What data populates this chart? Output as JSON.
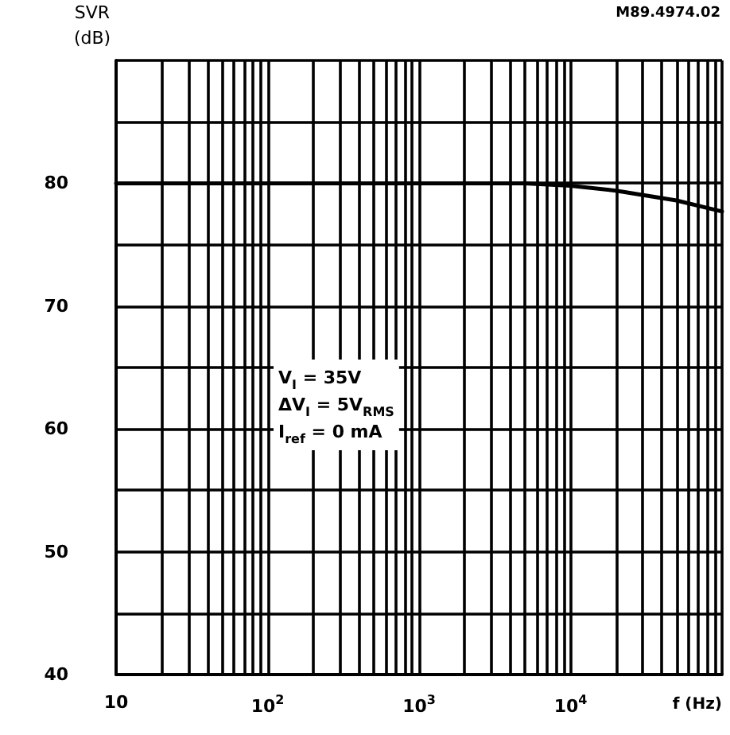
{
  "chart_data": {
    "type": "line",
    "ylabel": "SVR (dB)",
    "xlabel": "f (Hz)",
    "annotations": [
      "V$_{I}$ = 35V",
      "ΔV$_{I}$ = 5V$_{RMS}$",
      "I$_{ref}$ = 0 mA",
      "M89.4974.02"
    ],
    "x": [
      10,
      100,
      1000,
      3000,
      5000,
      10000,
      20000,
      50000,
      100000
    ],
    "series": [
      {
        "color": "#000000",
        "values": [
          80,
          80,
          80,
          80,
          80,
          79.8,
          79.4,
          78.6,
          77.7
        ]
      }
    ],
    "log": "x",
    "xlim": [
      10,
      100000
    ],
    "ylim": [
      40,
      90
    ],
    "xticks": [
      {
        "value": 10,
        "label": "10"
      },
      {
        "value": 20,
        "label": null
      },
      {
        "value": 30,
        "label": null
      },
      {
        "value": 40,
        "label": null
      },
      {
        "value": 50,
        "label": null
      },
      {
        "value": 60,
        "label": null
      },
      {
        "value": 70,
        "label": null
      },
      {
        "value": 80,
        "label": null
      },
      {
        "value": 90,
        "label": null
      },
      {
        "value": 100,
        "label": "10$^{2}$"
      },
      {
        "value": 200,
        "label": null
      },
      {
        "value": 300,
        "label": null
      },
      {
        "value": 400,
        "label": null
      },
      {
        "value": 500,
        "label": null
      },
      {
        "value": 600,
        "label": null
      },
      {
        "value": 700,
        "label": null
      },
      {
        "value": 800,
        "label": null
      },
      {
        "value": 900,
        "label": null
      },
      {
        "value": 1000,
        "label": "10$^{3}$"
      },
      {
        "value": 2000,
        "label": null
      },
      {
        "value": 3000,
        "label": null
      },
      {
        "value": 4000,
        "label": null
      },
      {
        "value": 5000,
        "label": null
      },
      {
        "value": 6000,
        "label": null
      },
      {
        "value": 7000,
        "label": null
      },
      {
        "value": 8000,
        "label": null
      },
      {
        "value": 9000,
        "label": null
      },
      {
        "value": 10000,
        "label": "10$^{4}$"
      },
      {
        "value": 20000,
        "label": null
      },
      {
        "value": 30000,
        "label": null
      },
      {
        "value": 40000,
        "label": null
      },
      {
        "value": 50000,
        "label": null
      },
      {
        "value": 60000,
        "label": null
      },
      {
        "value": 70000,
        "label": null
      },
      {
        "value": 80000,
        "label": null
      },
      {
        "value": 90000,
        "label": null
      },
      {
        "value": 100000,
        "label": null
      }
    ],
    "yticks": [
      40,
      {
        "value": 45,
        "label": null
      },
      50,
      {
        "value": 55,
        "label": null
      },
      60,
      {
        "value": 65,
        "label": null
      },
      70,
      {
        "value": 75,
        "label": null
      },
      80,
      {
        "value": 85,
        "label": null
      },
      {
        "value": 90,
        "label": null
      }
    ],
    "grid": true,
    "marker": "none",
    "line_style": "solid"
  }
}
